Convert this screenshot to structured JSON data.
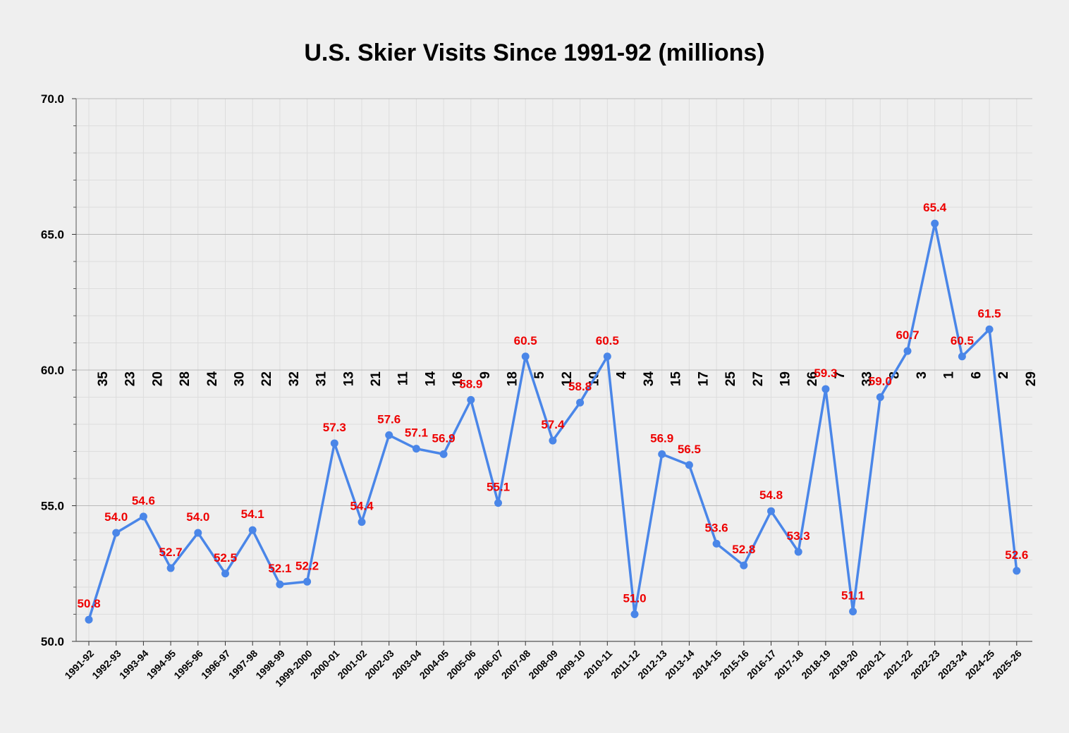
{
  "chart_data": {
    "type": "line",
    "title": "U.S. Skier Visits Since 1991-92 (millions)",
    "xlabel": "",
    "ylabel": "",
    "ylim": [
      50,
      70
    ],
    "y_ticks": [
      "50.0",
      "55.0",
      "60.0",
      "65.0",
      "70.0"
    ],
    "grid": true,
    "colors": {
      "line": "#4a86e8",
      "labels": "#ee0000",
      "background": "#efefef"
    },
    "categories": [
      "1991-92",
      "1992-93",
      "1993-94",
      "1994-95",
      "1995-96",
      "1996-97",
      "1997-98",
      "1998-99",
      "1999-2000",
      "2000-01",
      "2001-02",
      "2002-03",
      "2003-04",
      "2004-05",
      "2005-06",
      "2006-07",
      "2007-08",
      "2008-09",
      "2009-10",
      "2010-11",
      "2011-12",
      "2012-13",
      "2013-14",
      "2014-15",
      "2015-16",
      "2016-17",
      "2017-18",
      "2018-19",
      "2019-20",
      "2020-21",
      "2021-22",
      "2022-23",
      "2023-24",
      "2024-25",
      "2025-26"
    ],
    "values": [
      50.8,
      54.0,
      54.6,
      52.7,
      54.0,
      52.5,
      54.1,
      52.1,
      52.2,
      57.3,
      54.4,
      57.6,
      57.1,
      56.9,
      58.9,
      55.1,
      60.5,
      57.4,
      58.8,
      60.5,
      51.0,
      56.9,
      56.5,
      53.6,
      52.8,
      54.8,
      53.3,
      59.3,
      51.1,
      59.0,
      60.7,
      65.4,
      60.5,
      61.5,
      52.6
    ],
    "data_labels": [
      "50.8",
      "54.0",
      "54.6",
      "52.7",
      "54.0",
      "52.5",
      "54.1",
      "52.1",
      "52.2",
      "57.3",
      "54.4",
      "57.6",
      "57.1",
      "56.9",
      "58.9",
      "55.1",
      "60.5",
      "57.4",
      "58.8",
      "60.5",
      "51.0",
      "56.9",
      "56.5",
      "53.6",
      "52.8",
      "54.8",
      "53.3",
      "59.3",
      "51.1",
      "59.0",
      "60.7",
      "65.4",
      "60.5",
      "61.5",
      "52.6"
    ],
    "ranks": [
      "35",
      "23",
      "20",
      "28",
      "24",
      "30",
      "22",
      "32",
      "31",
      "13",
      "21",
      "11",
      "14",
      "16",
      "9",
      "18",
      "5",
      "12",
      "10",
      "4",
      "34",
      "15",
      "17",
      "25",
      "27",
      "19",
      "26",
      "7",
      "33",
      "8",
      "3",
      "1",
      "6",
      "2",
      "29"
    ]
  }
}
